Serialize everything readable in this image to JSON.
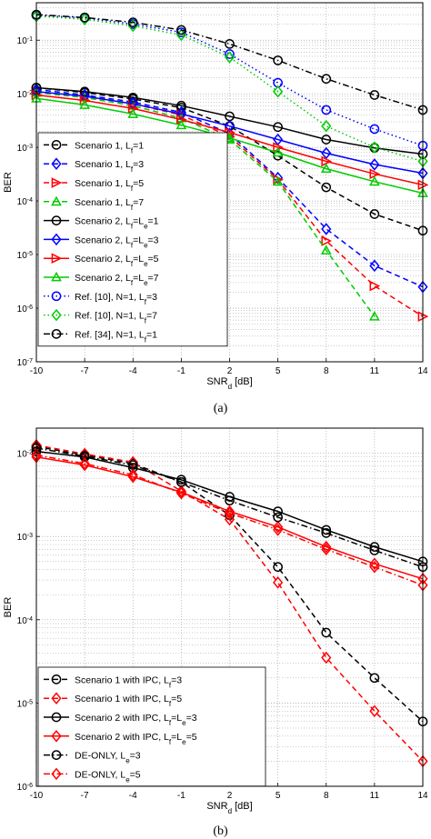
{
  "chart_data": [
    {
      "type": "line",
      "caption": "(a)",
      "xlabel": "SNR",
      "xlabel_sub": "d",
      "xlabel_unit": "[dB]",
      "ylabel": "BER",
      "yscale": "log",
      "ylim": [
        1e-07,
        0.5
      ],
      "xlim": [
        -10,
        14
      ],
      "x_ticks": [
        -10,
        -7,
        -4,
        -1,
        2,
        5,
        8,
        11,
        14
      ],
      "y_tick_exponents": [
        -7,
        -6,
        -5,
        -4,
        -3,
        -2,
        -1
      ],
      "grid": true,
      "legend_position": "bottom-left",
      "series": [
        {
          "name": "Scenario 1, L",
          "sub": "f",
          "suffix": "=1",
          "color": "#000000",
          "dash": "dashed",
          "marker": "circle",
          "x": [
            -10,
            -7,
            -4,
            -1,
            2,
            5,
            8,
            11,
            14
          ],
          "y": [
            0.013,
            0.0105,
            0.008,
            0.0055,
            0.0025,
            0.0007,
            0.00018,
            5.7e-05,
            2.8e-05
          ]
        },
        {
          "name": "Scenario 1, L",
          "sub": "f",
          "suffix": "=3",
          "color": "#0000ff",
          "dash": "dashed",
          "marker": "diamond",
          "x": [
            -10,
            -7,
            -4,
            -1,
            2,
            5,
            8,
            11,
            14
          ],
          "y": [
            0.012,
            0.0095,
            0.007,
            0.0045,
            0.0018,
            0.00027,
            3e-05,
            6.2e-06,
            2.5e-06
          ]
        },
        {
          "name": "Scenario 1, L",
          "sub": "f",
          "suffix": "=5",
          "color": "#ff0000",
          "dash": "dashed",
          "marker": "triangle-right",
          "x": [
            -10,
            -7,
            -4,
            -1,
            2,
            5,
            8,
            11,
            14
          ],
          "y": [
            0.011,
            0.009,
            0.0065,
            0.004,
            0.0016,
            0.00025,
            1.8e-05,
            2.6e-06,
            7e-07
          ]
        },
        {
          "name": "Scenario 1, L",
          "sub": "f",
          "suffix": "=7",
          "color": "#00cc00",
          "dash": "dashed",
          "marker": "triangle-up",
          "x": [
            -10,
            -7,
            -4,
            -1,
            2,
            5,
            8,
            11
          ],
          "y": [
            0.0105,
            0.0085,
            0.006,
            0.0035,
            0.0014,
            0.00023,
            1.2e-05,
            7e-07
          ]
        },
        {
          "name": "Scenario 2, L",
          "sub": "f",
          "suffix": "=L",
          "sub2": "e",
          "suffix2": "=1",
          "color": "#000000",
          "dash": "solid",
          "marker": "circle",
          "x": [
            -10,
            -7,
            -4,
            -1,
            2,
            5,
            8,
            11,
            14
          ],
          "y": [
            0.013,
            0.011,
            0.0085,
            0.006,
            0.0038,
            0.0024,
            0.0014,
            0.00098,
            0.00075
          ]
        },
        {
          "name": "Scenario 2, L",
          "sub": "f",
          "suffix": "=L",
          "sub2": "e",
          "suffix2": "=3",
          "color": "#0000ff",
          "dash": "solid",
          "marker": "diamond",
          "x": [
            -10,
            -7,
            -4,
            -1,
            2,
            5,
            8,
            11,
            14
          ],
          "y": [
            0.011,
            0.009,
            0.0065,
            0.0042,
            0.0025,
            0.0014,
            0.00078,
            0.00048,
            0.00033
          ]
        },
        {
          "name": "Scenario 2, L",
          "sub": "f",
          "suffix": "=L",
          "sub2": "e",
          "suffix2": "=5",
          "color": "#ff0000",
          "dash": "solid",
          "marker": "triangle-right",
          "x": [
            -10,
            -7,
            -4,
            -1,
            2,
            5,
            8,
            11,
            14
          ],
          "y": [
            0.0095,
            0.0075,
            0.0053,
            0.0033,
            0.0019,
            0.001,
            0.00055,
            0.00032,
            0.0002
          ]
        },
        {
          "name": "Scenario 2, L",
          "sub": "f",
          "suffix": "=L",
          "sub2": "e",
          "suffix2": "=7",
          "color": "#00cc00",
          "dash": "solid",
          "marker": "triangle-up",
          "x": [
            -10,
            -7,
            -4,
            -1,
            2,
            5,
            8,
            11,
            14
          ],
          "y": [
            0.0082,
            0.0062,
            0.0042,
            0.0026,
            0.0015,
            0.0008,
            0.0004,
            0.00023,
            0.00014
          ]
        },
        {
          "name": "Ref. [10], N=1, L",
          "sub": "f",
          "suffix": "=3",
          "color": "#0000ff",
          "dash": "dotted",
          "marker": "circle",
          "x": [
            -10,
            -7,
            -4,
            -1,
            2,
            5,
            8,
            11,
            14
          ],
          "y": [
            0.29,
            0.26,
            0.2,
            0.14,
            0.055,
            0.016,
            0.005,
            0.0022,
            0.00108
          ]
        },
        {
          "name": "Ref. [10], N=1, L",
          "sub": "f",
          "suffix": "=7",
          "color": "#00cc00",
          "dash": "dotted",
          "marker": "diamond",
          "x": [
            -10,
            -7,
            -4,
            -1,
            2,
            5,
            8,
            11,
            14
          ],
          "y": [
            0.28,
            0.245,
            0.185,
            0.125,
            0.048,
            0.011,
            0.0025,
            0.001,
            0.00055
          ]
        },
        {
          "name": "Ref. [34], N=1, L",
          "sub": "f",
          "suffix": "=1",
          "color": "#000000",
          "dash": "dashdot",
          "marker": "circle",
          "x": [
            -10,
            -7,
            -4,
            -1,
            2,
            5,
            8,
            11,
            14
          ],
          "y": [
            0.3,
            0.265,
            0.215,
            0.155,
            0.085,
            0.042,
            0.019,
            0.0095,
            0.005
          ]
        }
      ]
    },
    {
      "type": "line",
      "caption": "(b)",
      "xlabel": "SNR",
      "xlabel_sub": "d",
      "xlabel_unit": "[dB]",
      "ylabel": "BER",
      "yscale": "log",
      "ylim": [
        1e-06,
        0.02
      ],
      "xlim": [
        -10,
        14
      ],
      "x_ticks": [
        -10,
        -7,
        -4,
        -1,
        2,
        5,
        8,
        11,
        14
      ],
      "y_tick_exponents": [
        -6,
        -5,
        -4,
        -3,
        -2
      ],
      "grid": true,
      "legend_position": "bottom-left",
      "series": [
        {
          "name": "Scenario 1 with IPC, L",
          "sub": "f",
          "suffix": "=3",
          "color": "#000000",
          "dash": "dashed",
          "marker": "circle",
          "x": [
            -10,
            -7,
            -4,
            -1,
            2,
            5,
            8,
            11,
            14
          ],
          "y": [
            0.012,
            0.0095,
            0.0075,
            0.0045,
            0.0018,
            0.00043,
            7e-05,
            2e-05,
            6e-06
          ]
        },
        {
          "name": "Scenario 1 with IPC, L",
          "sub": "f",
          "suffix": "=5",
          "color": "#ff0000",
          "dash": "dashed",
          "marker": "diamond",
          "x": [
            -10,
            -7,
            -4,
            -1,
            2,
            5,
            8,
            11,
            14
          ],
          "y": [
            0.0125,
            0.0098,
            0.0078,
            0.0035,
            0.0016,
            0.00028,
            3.5e-05,
            8e-06,
            2e-06
          ]
        },
        {
          "name": "Scenario 2 with IPC, L",
          "sub": "f",
          "suffix": "=L",
          "sub2": "e",
          "suffix2": "=3",
          "color": "#000000",
          "dash": "solid",
          "marker": "circle",
          "x": [
            -10,
            -7,
            -4,
            -1,
            2,
            5,
            8,
            11,
            14
          ],
          "y": [
            0.0105,
            0.009,
            0.0067,
            0.0048,
            0.003,
            0.002,
            0.0012,
            0.00075,
            0.0005
          ]
        },
        {
          "name": "Scenario 2 with IPC, L",
          "sub": "f",
          "suffix": "=L",
          "sub2": "e",
          "suffix2": "=5",
          "color": "#ff0000",
          "dash": "solid",
          "marker": "diamond",
          "x": [
            -10,
            -7,
            -4,
            -1,
            2,
            5,
            8,
            11,
            14
          ],
          "y": [
            0.009,
            0.0072,
            0.0052,
            0.0034,
            0.002,
            0.0013,
            0.00075,
            0.00047,
            0.00031
          ]
        },
        {
          "name": "DE-ONLY, L",
          "sub": "e",
          "suffix": "=3",
          "color": "#000000",
          "dash": "dashdot",
          "marker": "circle",
          "x": [
            -10,
            -7,
            -4,
            -1,
            2,
            5,
            8,
            11,
            14
          ],
          "y": [
            0.0115,
            0.0092,
            0.0072,
            0.0045,
            0.0027,
            0.0017,
            0.0011,
            0.00068,
            0.00043
          ]
        },
        {
          "name": "DE-ONLY, L",
          "sub": "e",
          "suffix": "=5",
          "color": "#ff0000",
          "dash": "dashdot",
          "marker": "diamond",
          "x": [
            -10,
            -7,
            -4,
            -1,
            2,
            5,
            8,
            11,
            14
          ],
          "y": [
            0.0095,
            0.0075,
            0.0055,
            0.0033,
            0.0019,
            0.0012,
            0.0007,
            0.00043,
            0.00026
          ]
        }
      ]
    }
  ]
}
